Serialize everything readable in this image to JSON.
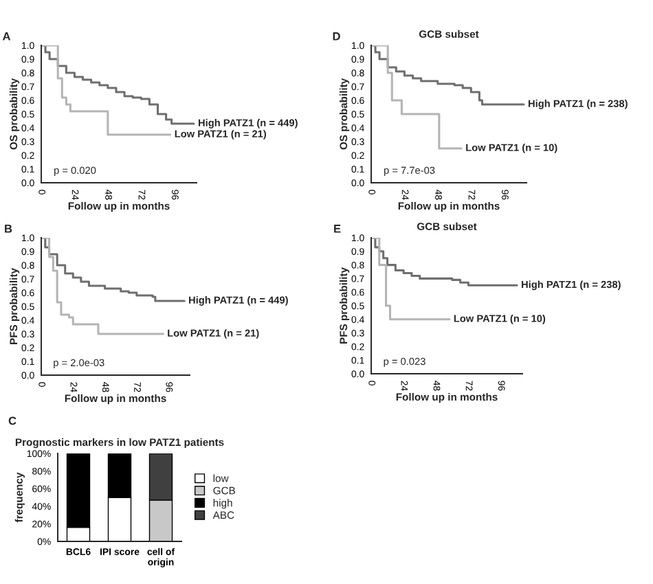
{
  "chart_data": [
    {
      "type": "step",
      "xlabel": "Follow up in months",
      "ylabel": "OS probability",
      "xlim": [
        0,
        112
      ],
      "xticks": [
        0,
        24,
        48,
        72,
        96
      ],
      "ylim": [
        0,
        1
      ],
      "yticks": [
        {
          "value": 0,
          "label": "0.0"
        },
        0.1,
        0.2,
        0.3,
        0.4,
        0.5,
        0.6,
        0.7,
        0.8,
        0.9,
        {
          "value": 1,
          "label": "1.0"
        }
      ],
      "annotations": [
        "A",
        "p = 0.020"
      ],
      "series": [
        {
          "name": "High PATZ1 (n = 449)",
          "color": "#6e6e6e",
          "x": [
            0,
            3,
            6,
            12,
            18,
            24,
            30,
            36,
            42,
            48,
            54,
            60,
            66,
            72,
            78,
            84,
            90,
            94,
            110
          ],
          "values": [
            1,
            0.95,
            0.9,
            0.85,
            0.8,
            0.77,
            0.75,
            0.73,
            0.71,
            0.69,
            0.66,
            0.63,
            0.62,
            0.61,
            0.57,
            0.5,
            0.46,
            0.43,
            0.43
          ]
        },
        {
          "name": "Low PATZ1 (n = 21)",
          "color": "#b4b4b4",
          "x": [
            0,
            12,
            15,
            18,
            21,
            48,
            93
          ],
          "values": [
            1,
            0.76,
            0.62,
            0.57,
            0.52,
            0.35,
            0.35
          ]
        }
      ]
    },
    {
      "type": "step",
      "xlabel": "Follow up in months",
      "ylabel": "PFS probability",
      "xlim": [
        0,
        112
      ],
      "xticks": [
        0,
        24,
        48,
        72,
        96
      ],
      "ylim": [
        0,
        1
      ],
      "yticks": [
        {
          "value": 0,
          "label": "0.0"
        },
        0.1,
        0.2,
        0.3,
        0.4,
        0.5,
        0.6,
        0.7,
        0.8,
        0.9,
        {
          "value": 1,
          "label": "1.0"
        }
      ],
      "annotations": [
        "B",
        "p = 2.0e-03"
      ],
      "series": [
        {
          "name": "High PATZ1 (n = 449)",
          "color": "#6e6e6e",
          "x": [
            0,
            3,
            6,
            12,
            18,
            24,
            30,
            36,
            48,
            60,
            66,
            72,
            84,
            86,
            108
          ],
          "values": [
            1,
            0.93,
            0.88,
            0.8,
            0.74,
            0.71,
            0.68,
            0.65,
            0.63,
            0.61,
            0.6,
            0.58,
            0.57,
            0.54,
            0.54
          ]
        },
        {
          "name": "Low PATZ1 (n = 21)",
          "color": "#b4b4b4",
          "x": [
            0,
            6,
            9,
            12,
            15,
            21,
            24,
            43,
            92
          ],
          "values": [
            1,
            0.86,
            0.76,
            0.53,
            0.44,
            0.42,
            0.37,
            0.3,
            0.3
          ]
        }
      ]
    },
    {
      "type": "bar",
      "stacked": true,
      "title": "Prognostic markers in low PATZ1 patients",
      "ylabel": "frequency",
      "categories": [
        "BCL6",
        "IPI score",
        "cell of\norigin"
      ],
      "ylim": [
        0,
        100
      ],
      "yticks": [
        {
          "value": 0,
          "label": "0%"
        },
        {
          "value": 20,
          "label": "20%"
        },
        {
          "value": 40,
          "label": "40%"
        },
        {
          "value": 60,
          "label": "60%"
        },
        {
          "value": 80,
          "label": "80%"
        },
        {
          "value": 100,
          "label": "100%"
        }
      ],
      "legend": "right",
      "annotations": [
        "C"
      ],
      "series": [
        {
          "name": "low",
          "color": "#ffffff",
          "values": [
            16,
            50,
            null
          ]
        },
        {
          "name": "GCB",
          "color": "#c8c8c8",
          "values": [
            null,
            null,
            47
          ]
        },
        {
          "name": "high",
          "color": "#000000",
          "values": [
            84,
            50,
            null
          ]
        },
        {
          "name": "ABC",
          "color": "#404040",
          "values": [
            null,
            null,
            53
          ]
        }
      ]
    },
    {
      "type": "step",
      "title": "GCB subset",
      "xlabel": "Follow up in months",
      "ylabel": "OS probability",
      "xlim": [
        0,
        112
      ],
      "xticks": [
        0,
        24,
        48,
        72,
        96
      ],
      "ylim": [
        0,
        1
      ],
      "yticks": [
        {
          "value": 0,
          "label": "0.0"
        },
        0.1,
        0.2,
        0.3,
        0.4,
        0.5,
        0.6,
        0.7,
        0.8,
        0.9,
        {
          "value": 1,
          "label": "1.0"
        }
      ],
      "annotations": [
        "D",
        "p = 7.7e-03"
      ],
      "series": [
        {
          "name": "High PATZ1 (n = 238)",
          "color": "#6e6e6e",
          "x": [
            0,
            3,
            6,
            12,
            18,
            24,
            30,
            36,
            48,
            60,
            66,
            72,
            78,
            80,
            110
          ],
          "values": [
            1,
            0.95,
            0.9,
            0.84,
            0.81,
            0.78,
            0.76,
            0.74,
            0.72,
            0.71,
            0.69,
            0.66,
            0.6,
            0.57,
            0.57
          ]
        },
        {
          "name": "Low PATZ1 (n = 10)",
          "color": "#b4b4b4",
          "x": [
            0,
            12,
            15,
            22,
            49,
            65
          ],
          "values": [
            1,
            0.8,
            0.6,
            0.5,
            0.25,
            0.25
          ]
        }
      ]
    },
    {
      "type": "step",
      "title": "GCB subset",
      "xlabel": "Follow up in months",
      "ylabel": "PFS probability",
      "xlim": [
        0,
        112
      ],
      "xticks": [
        0,
        24,
        48,
        72,
        96
      ],
      "ylim": [
        0,
        1
      ],
      "yticks": [
        {
          "value": 0,
          "label": "0.0"
        },
        0.1,
        0.2,
        0.3,
        0.4,
        0.5,
        0.6,
        0.7,
        0.8,
        0.9,
        {
          "value": 1,
          "label": "1.0"
        }
      ],
      "annotations": [
        "E",
        "p = 0.023"
      ],
      "series": [
        {
          "name": "High PATZ1 (n = 238)",
          "color": "#6e6e6e",
          "x": [
            0,
            3,
            6,
            9,
            12,
            18,
            24,
            30,
            36,
            60,
            66,
            72,
            108
          ],
          "values": [
            1,
            0.93,
            0.9,
            0.85,
            0.8,
            0.76,
            0.74,
            0.72,
            0.7,
            0.69,
            0.67,
            0.65,
            0.65
          ]
        },
        {
          "name": "Low PATZ1 (n = 10)",
          "color": "#b4b4b4",
          "x": [
            0,
            6,
            11,
            14,
            58
          ],
          "values": [
            1,
            0.8,
            0.5,
            0.4,
            0.4
          ]
        }
      ]
    }
  ]
}
